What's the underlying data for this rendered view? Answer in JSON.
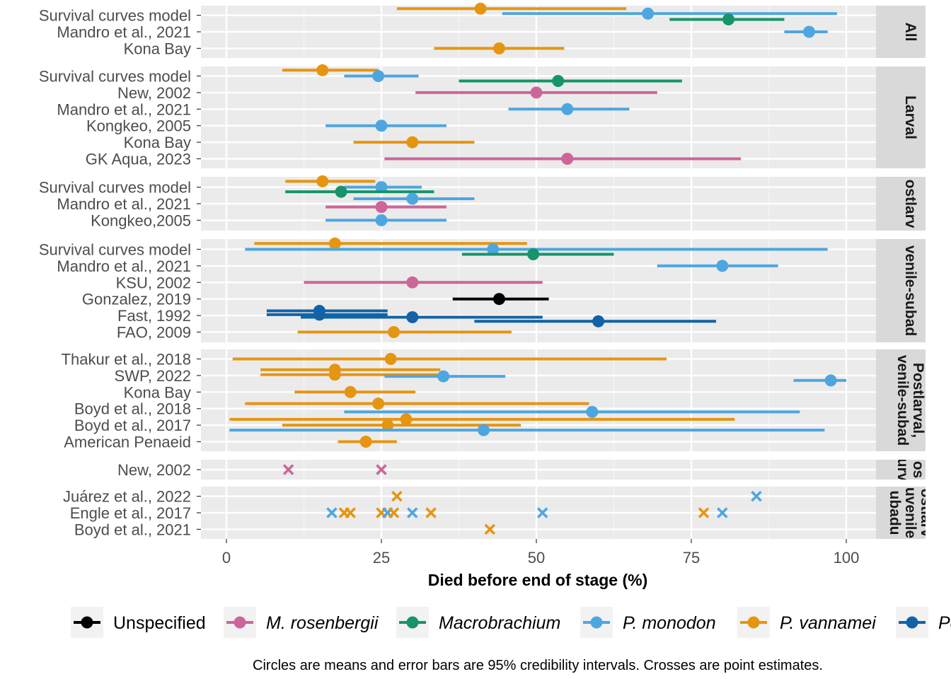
{
  "chart_data": {
    "type": "scatter",
    "xlabel": "Died before end of stage (%)",
    "xlim": [
      0,
      100
    ],
    "x_ticks": [
      "0",
      "25",
      "50",
      "75",
      "100"
    ],
    "caption": "Circles are means and error bars are 95% credibility intervals. Crosses are point estimates.",
    "legend": [
      {
        "name": "Unspecified",
        "color": "#000000",
        "italic": false
      },
      {
        "name": "M. rosenbergii",
        "color": "#CC6699",
        "italic": true
      },
      {
        "name": "Macrobrachium",
        "color": "#17946A",
        "italic": true
      },
      {
        "name": "P. monodon",
        "color": "#4EA6E0",
        "italic": true
      },
      {
        "name": "P. vannamei",
        "color": "#E69512",
        "italic": true
      },
      {
        "name": "Pe",
        "color": "#1162A6",
        "italic": true
      }
    ],
    "colors": {
      "Unspecified": "#000000",
      "M. rosenbergii": "#CC6699",
      "Macrobrachium": "#17946A",
      "P. monodon": "#4EA6E0",
      "P. vannamei": "#E69512",
      "Pe": "#1162A6"
    },
    "panels": [
      {
        "strip": [
          "All"
        ],
        "rows": [
          "Survival curves model",
          "Mandro et al., 2021",
          "Kona Bay"
        ],
        "points": [
          {
            "row": 0,
            "offset": -0.4,
            "series": "P. vannamei",
            "mean": 41,
            "lo": 27.5,
            "hi": 64.5
          },
          {
            "row": 0,
            "offset": -0.1,
            "series": "P. monodon",
            "mean": 68,
            "lo": 44.5,
            "hi": 98.5
          },
          {
            "row": 0,
            "offset": 0.25,
            "series": "Macrobrachium",
            "mean": 81,
            "lo": 71.5,
            "hi": 90
          },
          {
            "row": 1,
            "offset": 0,
            "series": "P. monodon",
            "mean": 94,
            "lo": 90,
            "hi": 97
          },
          {
            "row": 2,
            "offset": 0,
            "series": "P. vannamei",
            "mean": 44,
            "lo": 33.5,
            "hi": 54.5
          }
        ]
      },
      {
        "strip": [
          "Larval"
        ],
        "rows": [
          "Survival curves model",
          "New, 2002",
          "Mandro et al., 2021",
          "Kongkeo, 2005",
          "Kona Bay",
          "GK Aqua, 2023"
        ],
        "points": [
          {
            "row": 0,
            "offset": -0.35,
            "series": "P. vannamei",
            "mean": 15.5,
            "lo": 9,
            "hi": 24.5
          },
          {
            "row": 0,
            "offset": 0,
            "series": "P. monodon",
            "mean": 24.5,
            "lo": 19,
            "hi": 31
          },
          {
            "row": 0,
            "offset": 0.3,
            "series": "Macrobrachium",
            "mean": 53.5,
            "lo": 37.5,
            "hi": 73.5
          },
          {
            "row": 1,
            "offset": 0,
            "series": "M. rosenbergii",
            "mean": 50,
            "lo": 30.5,
            "hi": 69.5
          },
          {
            "row": 2,
            "offset": 0,
            "series": "P. monodon",
            "mean": 55,
            "lo": 45.5,
            "hi": 65
          },
          {
            "row": 3,
            "offset": 0,
            "series": "P. monodon",
            "mean": 25,
            "lo": 16,
            "hi": 35.5
          },
          {
            "row": 4,
            "offset": 0,
            "series": "P. vannamei",
            "mean": 30,
            "lo": 20.5,
            "hi": 40
          },
          {
            "row": 5,
            "offset": 0,
            "series": "M. rosenbergii",
            "mean": 55,
            "lo": 25.5,
            "hi": 83
          }
        ]
      },
      {
        "strip": [
          "ostlarv"
        ],
        "rows": [
          "Survival curves model",
          "Mandro et al., 2021",
          "Kongkeo,2005"
        ],
        "points": [
          {
            "row": 0,
            "offset": -0.35,
            "series": "P. vannamei",
            "mean": 15.5,
            "lo": 9.5,
            "hi": 24
          },
          {
            "row": 0,
            "offset": 0,
            "series": "P. monodon",
            "mean": 25,
            "lo": 19,
            "hi": 31.5
          },
          {
            "row": 0,
            "offset": 0.28,
            "series": "Macrobrachium",
            "mean": 18.5,
            "lo": 9.5,
            "hi": 33.5
          },
          {
            "row": 1,
            "offset": -0.3,
            "series": "P. monodon",
            "mean": 30,
            "lo": 20.5,
            "hi": 40
          },
          {
            "row": 1,
            "offset": 0.2,
            "series": "M. rosenbergii",
            "mean": 25,
            "lo": 16,
            "hi": 35.5
          },
          {
            "row": 2,
            "offset": 0,
            "series": "P. monodon",
            "mean": 25,
            "lo": 16,
            "hi": 35.5
          }
        ]
      },
      {
        "strip": [
          "venile-subad"
        ],
        "rows": [
          "Survival curves model",
          "Mandro et al., 2021",
          "KSU, 2002",
          "Gonzalez, 2019",
          "Fast, 1992",
          "FAO, 2009"
        ],
        "points": [
          {
            "row": 0,
            "offset": -0.35,
            "series": "P. vannamei",
            "mean": 17.5,
            "lo": 4.5,
            "hi": 48.5
          },
          {
            "row": 0,
            "offset": 0,
            "series": "P. monodon",
            "mean": 43,
            "lo": 3,
            "hi": 97
          },
          {
            "row": 0,
            "offset": 0.3,
            "series": "Macrobrachium",
            "mean": 49.5,
            "lo": 38,
            "hi": 62.5
          },
          {
            "row": 1,
            "offset": 0,
            "series": "P. monodon",
            "mean": 80,
            "lo": 69.5,
            "hi": 89
          },
          {
            "row": 2,
            "offset": 0,
            "series": "M. rosenbergii",
            "mean": 30,
            "lo": 12.5,
            "hi": 51
          },
          {
            "row": 3,
            "offset": 0,
            "series": "Unspecified",
            "mean": 44,
            "lo": 36.5,
            "hi": 52
          },
          {
            "row": 4,
            "offset": -0.28,
            "series": "Pe",
            "mean": 15,
            "lo": 6.5,
            "hi": 26
          },
          {
            "row": 4,
            "offset": -0.05,
            "series": "Pe",
            "mean": 15,
            "lo": 6.5,
            "hi": 26
          },
          {
            "row": 4,
            "offset": 0.1,
            "series": "Pe",
            "mean": 30,
            "lo": 12,
            "hi": 51
          },
          {
            "row": 4,
            "offset": 0.35,
            "series": "Pe",
            "mean": 60,
            "lo": 40,
            "hi": 79
          },
          {
            "row": 5,
            "offset": 0,
            "series": "P. vannamei",
            "mean": 27,
            "lo": 11.5,
            "hi": 46
          }
        ]
      },
      {
        "strip": [
          "Postlarval,",
          "venile-subad"
        ],
        "rows": [
          "Thakur et al., 2018",
          "SWP, 2022",
          "Kona Bay",
          "Boyd et al., 2018",
          "Boyd et al., 2017",
          "American Penaeid"
        ],
        "points": [
          {
            "row": 0,
            "offset": 0,
            "series": "P. vannamei",
            "mean": 26.5,
            "lo": 1,
            "hi": 71
          },
          {
            "row": 1,
            "offset": -0.35,
            "series": "P. vannamei",
            "mean": 17.5,
            "lo": 5.5,
            "hi": 34.5
          },
          {
            "row": 1,
            "offset": -0.05,
            "series": "P. vannamei",
            "mean": 17.5,
            "lo": 5.5,
            "hi": 34.5
          },
          {
            "row": 1,
            "offset": 0.05,
            "series": "P. monodon",
            "mean": 35,
            "lo": 25.5,
            "hi": 45
          },
          {
            "row": 1,
            "offset": 0.3,
            "series": "P. monodon",
            "mean": 97.5,
            "lo": 91.5,
            "hi": 100
          },
          {
            "row": 2,
            "offset": 0,
            "series": "P. vannamei",
            "mean": 20,
            "lo": 11,
            "hi": 30.5
          },
          {
            "row": 3,
            "offset": -0.3,
            "series": "P. vannamei",
            "mean": 24.5,
            "lo": 3,
            "hi": 58.5
          },
          {
            "row": 3,
            "offset": 0.2,
            "series": "P. monodon",
            "mean": 59,
            "lo": 19,
            "hi": 92.5
          },
          {
            "row": 4,
            "offset": -0.35,
            "series": "P. vannamei",
            "mean": 29,
            "lo": 0.5,
            "hi": 82
          },
          {
            "row": 4,
            "offset": 0,
            "series": "P. vannamei",
            "mean": 26,
            "lo": 9,
            "hi": 47.5
          },
          {
            "row": 4,
            "offset": 0.3,
            "series": "P. monodon",
            "mean": 41.5,
            "lo": 0.5,
            "hi": 96.5
          },
          {
            "row": 5,
            "offset": 0,
            "series": "P. vannamei",
            "mean": 22.5,
            "lo": 18,
            "hi": 27.5
          }
        ]
      },
      {
        "strip": [
          "os",
          "urv"
        ],
        "rows": [
          "New, 2002"
        ],
        "crosses": [
          {
            "row": 0,
            "offset": 0,
            "series": "M. rosenbergii",
            "x": 10
          },
          {
            "row": 0,
            "offset": 0,
            "series": "M. rosenbergii",
            "x": 25
          }
        ]
      },
      {
        "strip": [
          "ostlarv",
          "uvenile",
          "ubadu"
        ],
        "rows": [
          "Juárez et al., 2022",
          "Engle et al., 2017",
          "Boyd et al., 2021"
        ],
        "crosses": [
          {
            "row": 0,
            "offset": 0,
            "series": "P. vannamei",
            "x": 27.5
          },
          {
            "row": 0,
            "offset": 0,
            "series": "P. monodon",
            "x": 85.5
          },
          {
            "row": 1,
            "offset": 0,
            "series": "P. monodon",
            "x": 17
          },
          {
            "row": 1,
            "offset": 0,
            "series": "P. vannamei",
            "x": 19
          },
          {
            "row": 1,
            "offset": 0,
            "series": "P. vannamei",
            "x": 20
          },
          {
            "row": 1,
            "offset": 0,
            "series": "P. vannamei",
            "x": 25
          },
          {
            "row": 1,
            "offset": 0,
            "series": "P. monodon",
            "x": 26
          },
          {
            "row": 1,
            "offset": 0,
            "series": "P. vannamei",
            "x": 27
          },
          {
            "row": 1,
            "offset": 0,
            "series": "P. monodon",
            "x": 30
          },
          {
            "row": 1,
            "offset": 0,
            "series": "P. vannamei",
            "x": 33
          },
          {
            "row": 1,
            "offset": 0,
            "series": "P. monodon",
            "x": 51
          },
          {
            "row": 1,
            "offset": 0,
            "series": "P. vannamei",
            "x": 77
          },
          {
            "row": 1,
            "offset": 0,
            "series": "P. monodon",
            "x": 80
          },
          {
            "row": 2,
            "offset": 0,
            "series": "P. vannamei",
            "x": 42.5
          }
        ]
      }
    ]
  }
}
